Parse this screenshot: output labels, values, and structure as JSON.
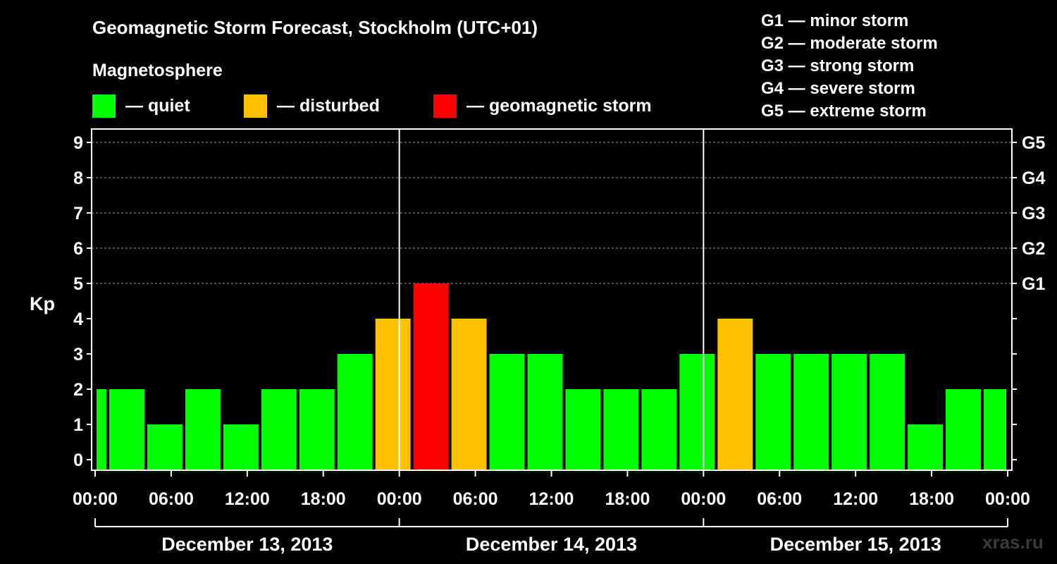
{
  "title": "Geomagnetic Storm Forecast, Stockholm (UTC+01)",
  "magnetosphere_label": "Magnetosphere",
  "legend": [
    {
      "label": "— quiet",
      "color": "#00ff00"
    },
    {
      "label": "— disturbed",
      "color": "#ffc000"
    },
    {
      "label": "— geomagnetic storm",
      "color": "#ff0000"
    }
  ],
  "storm_levels": [
    "G1 — minor storm",
    "G2 — moderate storm",
    "G3 — strong storm",
    "G4 — severe storm",
    "G5 — extreme storm"
  ],
  "watermark": "xras.ru",
  "colors": {
    "quiet": "#00ff00",
    "disturbed": "#ffc000",
    "storm": "#ff0000"
  },
  "chart_data": {
    "type": "bar",
    "ylabel": "Kp",
    "ylim": [
      0,
      9
    ],
    "yticks": [
      "0",
      "1",
      "2",
      "3",
      "4",
      "5",
      "6",
      "7",
      "8",
      "9"
    ],
    "right_ticks": [
      {
        "kp": 5,
        "label": "G1"
      },
      {
        "kp": 6,
        "label": "G2"
      },
      {
        "kp": 7,
        "label": "G3"
      },
      {
        "kp": 8,
        "label": "G4"
      },
      {
        "kp": 9,
        "label": "G5"
      }
    ],
    "xticks": [
      "00:00",
      "06:00",
      "12:00",
      "18:00",
      "00:00",
      "06:00",
      "12:00",
      "18:00",
      "00:00",
      "06:00",
      "12:00",
      "18:00",
      "00:00"
    ],
    "xlim_hours": [
      0,
      72
    ],
    "days": [
      "December 13, 2013",
      "December 14, 2013",
      "December 15, 2013"
    ],
    "grid": "dashed horizontal",
    "bars": [
      {
        "start_hour": 0,
        "end_hour": 1,
        "kp": 2,
        "level": "quiet"
      },
      {
        "start_hour": 1,
        "end_hour": 4,
        "kp": 2,
        "level": "quiet"
      },
      {
        "start_hour": 4,
        "end_hour": 7,
        "kp": 1,
        "level": "quiet"
      },
      {
        "start_hour": 7,
        "end_hour": 10,
        "kp": 2,
        "level": "quiet"
      },
      {
        "start_hour": 10,
        "end_hour": 13,
        "kp": 1,
        "level": "quiet"
      },
      {
        "start_hour": 13,
        "end_hour": 16,
        "kp": 2,
        "level": "quiet"
      },
      {
        "start_hour": 16,
        "end_hour": 19,
        "kp": 2,
        "level": "quiet"
      },
      {
        "start_hour": 19,
        "end_hour": 22,
        "kp": 3,
        "level": "quiet"
      },
      {
        "start_hour": 22,
        "end_hour": 25,
        "kp": 4,
        "level": "disturbed"
      },
      {
        "start_hour": 25,
        "end_hour": 28,
        "kp": 5,
        "level": "storm"
      },
      {
        "start_hour": 28,
        "end_hour": 31,
        "kp": 4,
        "level": "disturbed"
      },
      {
        "start_hour": 31,
        "end_hour": 34,
        "kp": 3,
        "level": "quiet"
      },
      {
        "start_hour": 34,
        "end_hour": 37,
        "kp": 3,
        "level": "quiet"
      },
      {
        "start_hour": 37,
        "end_hour": 40,
        "kp": 2,
        "level": "quiet"
      },
      {
        "start_hour": 40,
        "end_hour": 43,
        "kp": 2,
        "level": "quiet"
      },
      {
        "start_hour": 43,
        "end_hour": 46,
        "kp": 2,
        "level": "quiet"
      },
      {
        "start_hour": 46,
        "end_hour": 49,
        "kp": 3,
        "level": "quiet"
      },
      {
        "start_hour": 49,
        "end_hour": 52,
        "kp": 4,
        "level": "disturbed"
      },
      {
        "start_hour": 52,
        "end_hour": 55,
        "kp": 3,
        "level": "quiet"
      },
      {
        "start_hour": 55,
        "end_hour": 58,
        "kp": 3,
        "level": "quiet"
      },
      {
        "start_hour": 58,
        "end_hour": 61,
        "kp": 3,
        "level": "quiet"
      },
      {
        "start_hour": 61,
        "end_hour": 64,
        "kp": 3,
        "level": "quiet"
      },
      {
        "start_hour": 64,
        "end_hour": 67,
        "kp": 1,
        "level": "quiet"
      },
      {
        "start_hour": 67,
        "end_hour": 70,
        "kp": 2,
        "level": "quiet"
      },
      {
        "start_hour": 70,
        "end_hour": 72,
        "kp": 2,
        "level": "quiet"
      }
    ]
  }
}
